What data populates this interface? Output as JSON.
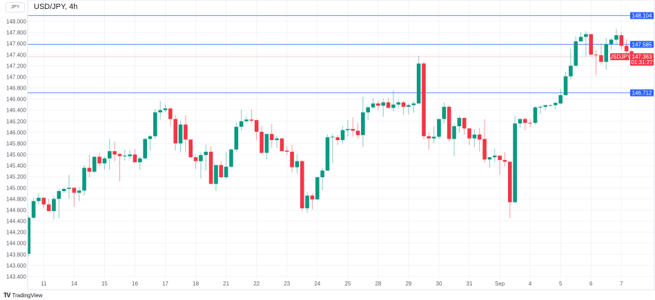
{
  "header": {
    "currency": "JPY",
    "symbol_title": "USD/JPY, 4h"
  },
  "price_lines": [
    {
      "price": 148.104,
      "label": "148.104",
      "color": "#2962ff"
    },
    {
      "price": 147.585,
      "label": "147.585",
      "color": "#2962ff"
    },
    {
      "price": 146.712,
      "label": "146.712",
      "color": "#2962ff"
    }
  ],
  "current_price": {
    "price": 147.363,
    "label": "147.363",
    "countdown": "01:31:27",
    "tag": "USDJPY",
    "color": "#f23645"
  },
  "branding": {
    "logo_text": "TradingView"
  },
  "colors": {
    "up": "#089981",
    "down": "#f23645",
    "grid": "#f0f3fa"
  },
  "chart_data": {
    "type": "candlestick",
    "title": "USD/JPY, 4h",
    "ylim": [
      143.3,
      148.3
    ],
    "yticks": [
      "148.000",
      "147.800",
      "147.600",
      "147.400",
      "147.200",
      "147.000",
      "146.800",
      "146.600",
      "146.400",
      "146.200",
      "146.000",
      "145.800",
      "145.600",
      "145.400",
      "145.200",
      "145.000",
      "144.800",
      "144.600",
      "144.400",
      "144.200",
      "144.000",
      "143.800",
      "143.600",
      "143.400"
    ],
    "time_labels": [
      "11",
      "14",
      "15",
      "16",
      "17",
      "18",
      "21",
      "22",
      "23",
      "24",
      "25",
      "28",
      "29",
      "30",
      "31",
      "Sep",
      "4",
      "5",
      "6",
      "7"
    ],
    "candles_per_day": 6,
    "first_label_candle": 3,
    "ohlc": [
      [
        143.81,
        144.49,
        143.76,
        144.46
      ],
      [
        144.46,
        144.82,
        144.44,
        144.76
      ],
      [
        144.76,
        144.9,
        144.7,
        144.82
      ],
      [
        144.82,
        144.83,
        144.63,
        144.7
      ],
      [
        144.7,
        144.8,
        144.57,
        144.58
      ],
      [
        144.58,
        144.85,
        144.43,
        144.8
      ],
      [
        144.8,
        144.98,
        144.45,
        144.94
      ],
      [
        144.94,
        145.01,
        144.9,
        144.98
      ],
      [
        144.98,
        145.23,
        144.8,
        145.0
      ],
      [
        145.0,
        145.01,
        144.66,
        144.91
      ],
      [
        144.91,
        145.01,
        144.76,
        144.95
      ],
      [
        144.95,
        145.41,
        144.86,
        145.36
      ],
      [
        145.36,
        145.59,
        145.19,
        145.29
      ],
      [
        145.29,
        145.56,
        145.26,
        145.56
      ],
      [
        145.56,
        145.63,
        145.39,
        145.44
      ],
      [
        145.44,
        145.56,
        145.33,
        145.53
      ],
      [
        145.53,
        145.88,
        145.33,
        145.66
      ],
      [
        145.66,
        145.83,
        145.47,
        145.6
      ],
      [
        145.61,
        145.63,
        145.12,
        145.57
      ],
      [
        145.57,
        145.68,
        145.49,
        145.58
      ],
      [
        145.57,
        145.68,
        145.52,
        145.6
      ],
      [
        145.6,
        145.7,
        145.46,
        145.46
      ],
      [
        145.46,
        145.57,
        145.32,
        145.53
      ],
      [
        145.53,
        145.9,
        145.52,
        145.88
      ],
      [
        145.88,
        145.95,
        145.67,
        145.93
      ],
      [
        145.93,
        146.42,
        145.88,
        146.36
      ],
      [
        146.36,
        146.57,
        146.23,
        146.4
      ],
      [
        146.4,
        146.5,
        146.36,
        146.43
      ],
      [
        146.43,
        146.43,
        146.11,
        146.24
      ],
      [
        146.24,
        146.31,
        145.67,
        145.8
      ],
      [
        145.8,
        146.21,
        145.64,
        146.14
      ],
      [
        146.14,
        146.31,
        145.65,
        145.87
      ],
      [
        145.87,
        145.87,
        145.55,
        145.55
      ],
      [
        145.55,
        145.6,
        145.34,
        145.48
      ],
      [
        145.48,
        145.64,
        145.17,
        145.59
      ],
      [
        145.59,
        145.78,
        145.31,
        145.65
      ],
      [
        145.65,
        145.75,
        145.07,
        145.07
      ],
      [
        145.07,
        145.41,
        144.94,
        145.41
      ],
      [
        145.41,
        145.48,
        145.16,
        145.19
      ],
      [
        145.19,
        145.64,
        145.16,
        145.38
      ],
      [
        145.38,
        145.71,
        145.35,
        145.69
      ],
      [
        145.69,
        146.18,
        145.64,
        146.1
      ],
      [
        146.1,
        146.41,
        146.03,
        146.2
      ],
      [
        146.2,
        146.29,
        146.16,
        146.23
      ],
      [
        146.23,
        146.41,
        146.16,
        146.21
      ],
      [
        146.22,
        146.23,
        145.86,
        146.01
      ],
      [
        146.01,
        146.12,
        145.61,
        145.63
      ],
      [
        145.63,
        145.97,
        145.51,
        145.97
      ],
      [
        145.97,
        146.15,
        145.72,
        145.86
      ],
      [
        145.86,
        145.94,
        145.72,
        145.89
      ],
      [
        145.89,
        145.89,
        145.66,
        145.66
      ],
      [
        145.67,
        145.75,
        145.59,
        145.65
      ],
      [
        145.65,
        145.77,
        145.27,
        145.37
      ],
      [
        145.37,
        145.6,
        145.26,
        145.48
      ],
      [
        145.48,
        145.5,
        144.58,
        144.63
      ],
      [
        144.63,
        144.92,
        144.55,
        144.86
      ],
      [
        144.86,
        144.9,
        144.61,
        144.79
      ],
      [
        144.79,
        145.21,
        144.79,
        145.19
      ],
      [
        145.19,
        145.36,
        144.95,
        145.31
      ],
      [
        145.31,
        145.96,
        145.3,
        145.91
      ],
      [
        145.91,
        145.97,
        145.44,
        145.92
      ],
      [
        145.91,
        145.95,
        145.77,
        145.86
      ],
      [
        145.86,
        146.11,
        145.8,
        146.04
      ],
      [
        146.04,
        146.22,
        145.92,
        146.06
      ],
      [
        146.06,
        146.27,
        145.92,
        146.03
      ],
      [
        146.03,
        146.17,
        145.89,
        145.95
      ],
      [
        145.95,
        146.64,
        145.73,
        146.36
      ],
      [
        146.36,
        146.47,
        146.22,
        146.45
      ],
      [
        146.45,
        146.62,
        146.42,
        146.52
      ],
      [
        146.52,
        146.57,
        146.4,
        146.48
      ],
      [
        146.48,
        146.61,
        146.28,
        146.54
      ],
      [
        146.54,
        146.61,
        146.44,
        146.44
      ],
      [
        146.44,
        146.76,
        146.38,
        146.5
      ],
      [
        146.5,
        146.59,
        146.43,
        146.54
      ],
      [
        146.54,
        146.57,
        146.32,
        146.46
      ],
      [
        146.46,
        146.52,
        146.32,
        146.49
      ],
      [
        146.49,
        146.57,
        146.35,
        146.52
      ],
      [
        146.52,
        147.38,
        146.52,
        147.24
      ],
      [
        147.24,
        147.27,
        145.87,
        145.93
      ],
      [
        145.93,
        146.0,
        145.69,
        145.89
      ],
      [
        145.89,
        146.11,
        145.8,
        145.92
      ],
      [
        145.92,
        146.24,
        145.88,
        146.24
      ],
      [
        146.24,
        146.54,
        146.16,
        146.46
      ],
      [
        146.46,
        146.49,
        145.83,
        145.88
      ],
      [
        145.88,
        146.15,
        145.57,
        146.11
      ],
      [
        146.11,
        146.3,
        145.99,
        146.26
      ],
      [
        146.26,
        146.26,
        145.96,
        146.07
      ],
      [
        146.07,
        146.07,
        145.77,
        145.89
      ],
      [
        145.89,
        146.06,
        145.73,
        145.96
      ],
      [
        145.96,
        146.08,
        145.65,
        145.87
      ],
      [
        145.88,
        146.24,
        145.45,
        145.51
      ],
      [
        145.51,
        145.56,
        145.36,
        145.55
      ],
      [
        145.55,
        145.71,
        145.46,
        145.58
      ],
      [
        145.58,
        145.58,
        145.24,
        145.5
      ],
      [
        145.5,
        145.64,
        145.38,
        145.47
      ],
      [
        145.47,
        145.47,
        144.45,
        144.74
      ],
      [
        144.74,
        146.3,
        144.73,
        146.16
      ],
      [
        146.16,
        146.25,
        146.08,
        146.24
      ],
      [
        146.24,
        146.27,
        146.04,
        146.17
      ],
      [
        146.17,
        146.24,
        146.09,
        146.16
      ],
      [
        146.17,
        146.47,
        146.14,
        146.45
      ],
      [
        146.45,
        146.49,
        146.33,
        146.46
      ],
      [
        146.46,
        146.49,
        146.4,
        146.49
      ],
      [
        146.48,
        146.5,
        146.47,
        146.49
      ],
      [
        146.49,
        146.56,
        146.42,
        146.53
      ],
      [
        146.52,
        146.78,
        146.5,
        146.67
      ],
      [
        146.67,
        147.09,
        146.66,
        147.01
      ],
      [
        147.01,
        147.51,
        146.95,
        147.2
      ],
      [
        147.2,
        147.73,
        147.19,
        147.64
      ],
      [
        147.64,
        147.8,
        147.63,
        147.72
      ],
      [
        147.72,
        147.82,
        147.37,
        147.77
      ],
      [
        147.77,
        147.77,
        147.4,
        147.4
      ],
      [
        147.4,
        147.49,
        147.03,
        147.39
      ],
      [
        147.39,
        147.6,
        147.22,
        147.27
      ],
      [
        147.27,
        147.7,
        147.13,
        147.59
      ],
      [
        147.59,
        147.7,
        147.49,
        147.67
      ],
      [
        147.67,
        147.87,
        147.58,
        147.75
      ],
      [
        147.75,
        147.8,
        147.49,
        147.56
      ],
      [
        147.56,
        147.68,
        147.37,
        147.46
      ],
      [
        147.46,
        147.49,
        147.37,
        147.36
      ]
    ]
  }
}
